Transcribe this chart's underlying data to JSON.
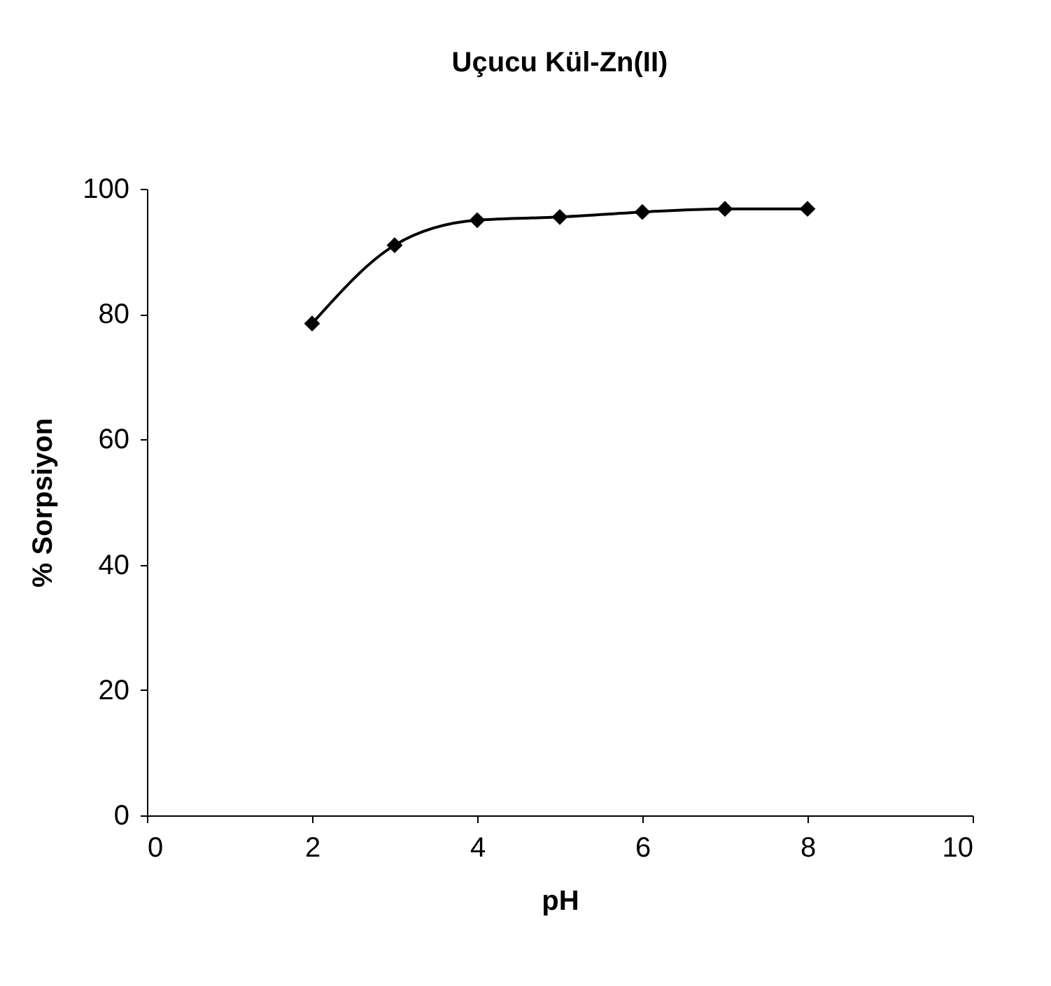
{
  "chart_data": {
    "type": "line",
    "title": "Uçucu Kül-Zn(II)",
    "xlabel": "pH",
    "ylabel": "% Sorpsiyon",
    "x": [
      2,
      3,
      4,
      5,
      6,
      7,
      8
    ],
    "series": [
      {
        "color": "#000000",
        "values": [
          78.5,
          91,
          95,
          95.5,
          96.3,
          96.8,
          96.8
        ]
      }
    ],
    "xlim": [
      0,
      10
    ],
    "xticks": [
      0,
      2,
      4,
      6,
      8,
      10
    ],
    "ylim": [
      0,
      100
    ],
    "yticks": [
      0,
      20,
      40,
      60,
      80,
      100
    ],
    "grid": false,
    "legend": false,
    "marker": "diamond",
    "line_style": "solid"
  }
}
